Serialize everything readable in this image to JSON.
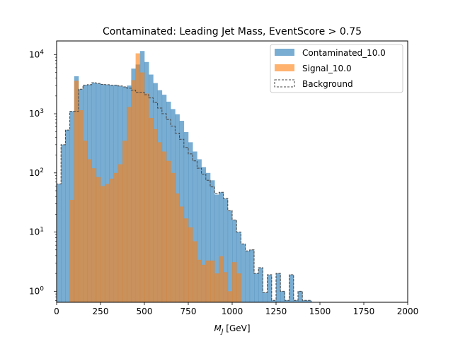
{
  "chart_data": {
    "type": "histogram",
    "title": "Contaminated: Leading Jet Mass, EventScore > 0.75",
    "xlabel_var": "M",
    "xlabel_sub": "J",
    "xlabel_unit": " [GeV]",
    "xlim": [
      0,
      2000
    ],
    "ylim": [
      0.65,
      17000
    ],
    "yscale": "log",
    "bin_width": 25,
    "x_ticks": [
      0,
      250,
      500,
      750,
      1000,
      1250,
      1500,
      1750,
      2000
    ],
    "x_tick_labels": [
      "0",
      "250",
      "500",
      "750",
      "1000",
      "1250",
      "1500",
      "1750",
      "2000"
    ],
    "y_ticks": [
      {
        "value": 1,
        "base": "10",
        "exp": "0"
      },
      {
        "value": 10,
        "base": "10",
        "exp": "1"
      },
      {
        "value": 100,
        "base": "10",
        "exp": "2"
      },
      {
        "value": 1000,
        "base": "10",
        "exp": "3"
      },
      {
        "value": 10000,
        "base": "10",
        "exp": "4"
      }
    ],
    "legend_position": "upper right",
    "series": [
      {
        "name": "Contaminated_10.0",
        "style": "filled",
        "color": "#1f77b4",
        "opacity": 0.6,
        "bin_start": 0,
        "values": [
          65,
          300,
          530,
          1100,
          4300,
          2600,
          3050,
          3100,
          3350,
          3250,
          3150,
          3100,
          3050,
          3050,
          2950,
          2850,
          3000,
          5800,
          6800,
          11500,
          7500,
          4600,
          3300,
          2500,
          2100,
          1600,
          1200,
          980,
          760,
          490,
          330,
          230,
          170,
          125,
          100,
          75,
          43,
          47,
          37,
          23,
          16,
          10,
          6.3,
          4.8,
          5.0,
          2.0,
          2.5,
          0.95,
          1.9,
          0.7,
          2.0,
          1.0,
          0.7,
          1.9,
          0.7,
          1.0,
          0.7,
          0.7
        ]
      },
      {
        "name": "Signal_10.0",
        "style": "filled",
        "color": "#ff7f0e",
        "opacity": 0.6,
        "bin_start": 75,
        "values": [
          35,
          3600,
          1150,
          350,
          170,
          120,
          85,
          60,
          65,
          80,
          100,
          140,
          350,
          1300,
          3700,
          10500,
          5000,
          2200,
          850,
          550,
          330,
          230,
          160,
          100,
          45,
          27,
          17,
          12,
          7,
          3.4,
          2.8,
          3.3,
          3.3,
          2.0,
          3.9,
          2.1,
          1.0,
          3.1,
          2.0
        ]
      },
      {
        "name": "Background",
        "style": "step",
        "color": "#444444",
        "bin_start": 0,
        "values": [
          65,
          300,
          530,
          1100,
          1100,
          2600,
          3050,
          3100,
          3350,
          3250,
          3150,
          3100,
          3050,
          3050,
          2950,
          2850,
          2700,
          2500,
          2300,
          2300,
          2100,
          1850,
          1550,
          1250,
          1000,
          800,
          620,
          470,
          370,
          270,
          210,
          160,
          120,
          95,
          75,
          58,
          45,
          47,
          37,
          23,
          16,
          10,
          6.3,
          4.8,
          5.0,
          2.0,
          2.5,
          0.95,
          1.9,
          0.7,
          2.0,
          1.0,
          0.7,
          1.9,
          0.7,
          1.0,
          0.7,
          0.7
        ]
      }
    ]
  }
}
